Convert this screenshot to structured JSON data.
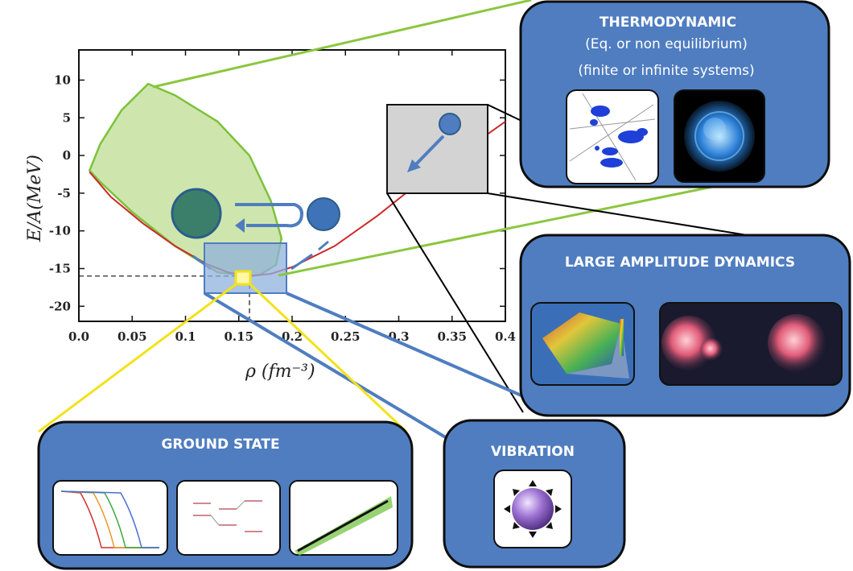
{
  "chart_data": {
    "type": "line",
    "xlabel": "ρ (fm⁻³)",
    "ylabel": "E/A(MeV)",
    "xlim": [
      0.0,
      0.4
    ],
    "ylim": [
      -22,
      14
    ],
    "x_ticks": [
      "0.0",
      "0.05",
      "0.1",
      "0.15",
      "0.2",
      "0.25",
      "0.3",
      "0.35",
      "0.4"
    ],
    "y_ticks": [
      "10",
      "5",
      "0",
      "-5",
      "-10",
      "-15",
      "-20"
    ],
    "saturation": {
      "rho": 0.16,
      "e": -16
    },
    "series": [
      {
        "color": "#cc2a2a",
        "x": [
          0.01,
          0.03,
          0.06,
          0.09,
          0.12,
          0.14,
          0.16,
          0.18,
          0.2,
          0.24,
          0.28,
          0.32,
          0.36,
          0.4
        ],
        "y": [
          -2.2,
          -5.5,
          -9.0,
          -12.0,
          -14.4,
          -15.5,
          -16.0,
          -15.7,
          -14.8,
          -12.0,
          -8.0,
          -3.5,
          0.5,
          4.5
        ]
      }
    ],
    "region_color": "#b9dc8a",
    "region_outline": [
      [
        0.01,
        -2.0
      ],
      [
        0.02,
        1.5
      ],
      [
        0.04,
        6.0
      ],
      [
        0.065,
        9.5
      ],
      [
        0.09,
        8.0
      ],
      [
        0.13,
        4.5
      ],
      [
        0.16,
        0.0
      ],
      [
        0.18,
        -6.0
      ],
      [
        0.19,
        -11.0
      ],
      [
        0.185,
        -14.5
      ],
      [
        0.17,
        -15.8
      ],
      [
        0.16,
        -16.0
      ],
      [
        0.13,
        -15.5
      ],
      [
        0.09,
        -12.0
      ],
      [
        0.05,
        -7.5
      ],
      [
        0.02,
        -3.5
      ],
      [
        0.01,
        -2.0
      ]
    ]
  },
  "panels": {
    "thermodynamic": {
      "title": "THERMODYNAMIC",
      "line1": "(Eq. or non equilibrium)",
      "line2": "(finite or infinite systems)"
    },
    "large_amplitude": {
      "title": "LARGE AMPLITUDE DYNAMICS"
    },
    "ground_state": {
      "title": "GROUND STATE"
    },
    "vibration": {
      "title": "VIBRATION"
    }
  },
  "colors": {
    "panel_fill": "#4f7dc0",
    "panel_stroke": "#0d0d0d",
    "connector_green": "#8cc63f",
    "connector_blue": "#4f7dc0",
    "connector_yellow": "#f2e21a",
    "connector_black": "#000000"
  }
}
